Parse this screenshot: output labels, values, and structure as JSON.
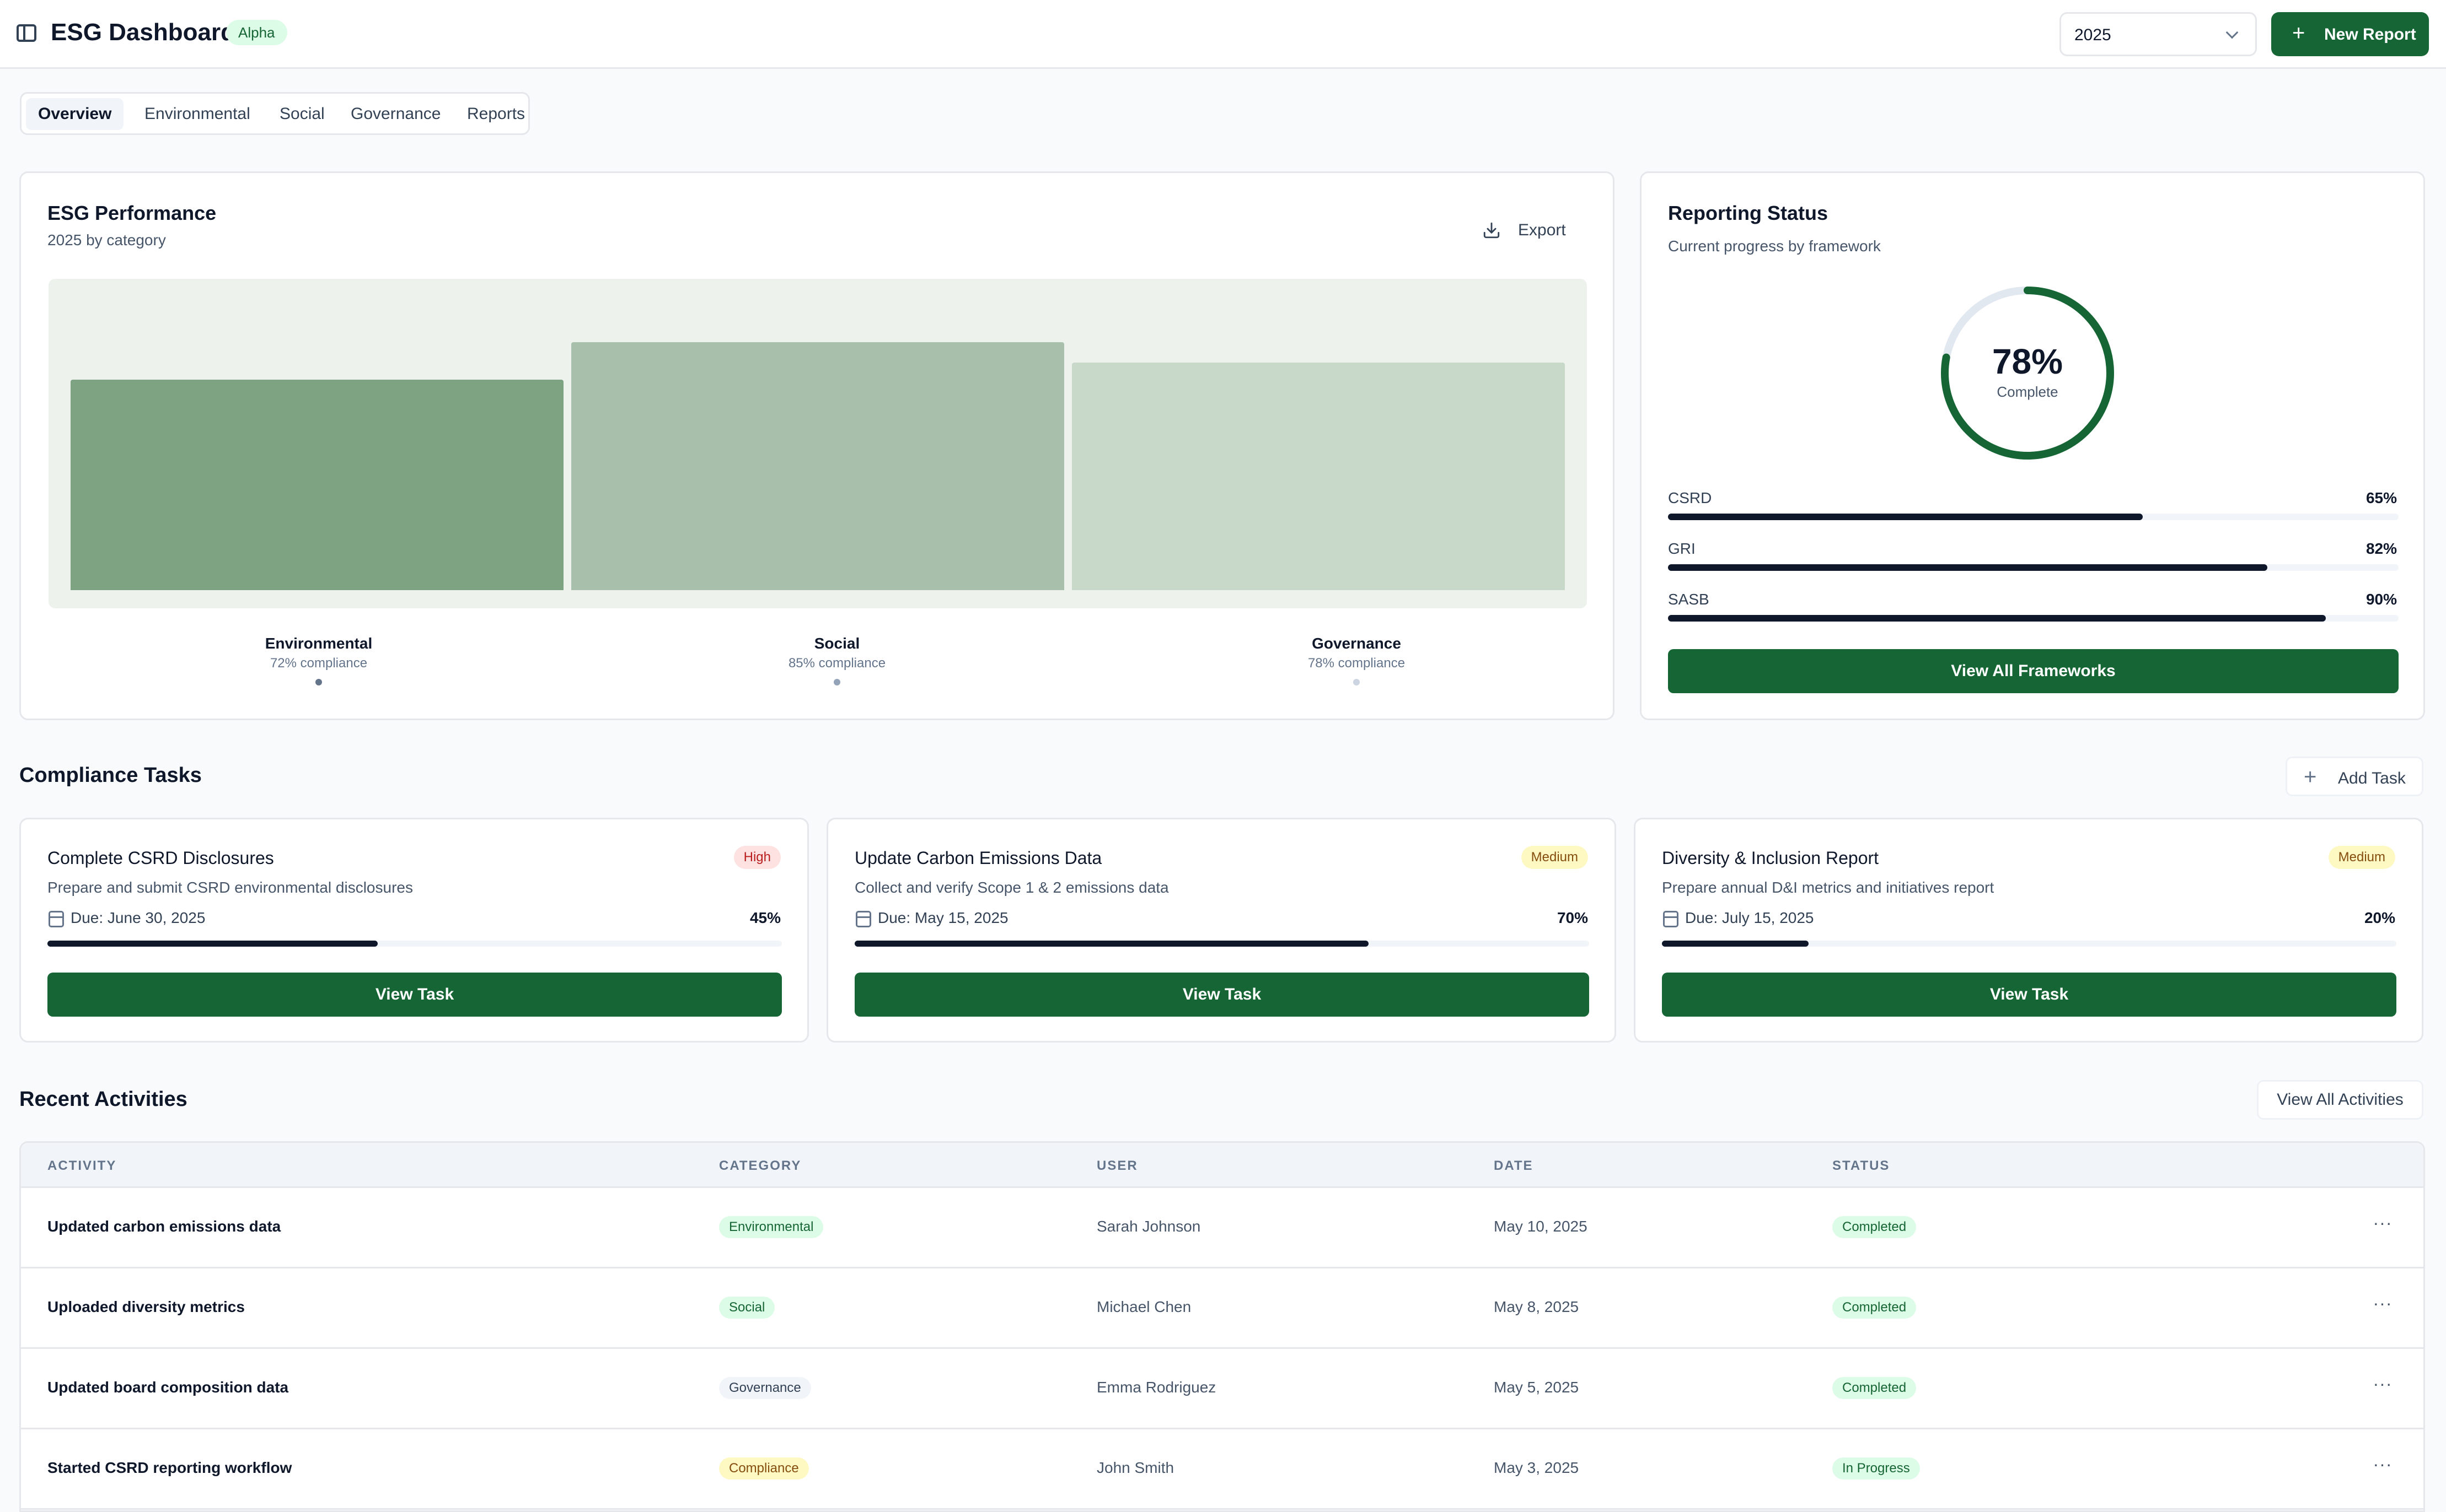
{
  "header": {
    "title": "ESG Dashboard",
    "badge": "Alpha",
    "year": "2025",
    "new_report_label": "New Report"
  },
  "tabs": [
    {
      "label": "Overview",
      "active": true
    },
    {
      "label": "Environmental"
    },
    {
      "label": "Social"
    },
    {
      "label": "Governance"
    },
    {
      "label": "Reports"
    }
  ],
  "performance": {
    "title": "ESG Performance",
    "subtitle": "2025 by category",
    "export_label": "Export",
    "categories": [
      {
        "name": "Environmental",
        "compliance_text": "72% compliance",
        "compliance": 72,
        "color": "#7ea383",
        "dot": "#64748b"
      },
      {
        "name": "Social",
        "compliance_text": "85% compliance",
        "compliance": 85,
        "color": "#a7bfab",
        "dot": "#94a3b8"
      },
      {
        "name": "Governance",
        "compliance_text": "78% compliance",
        "compliance": 78,
        "color": "#c8d9ca",
        "dot": "#cbd5e1"
      }
    ]
  },
  "reporting": {
    "title": "Reporting Status",
    "subtitle": "Current progress by framework",
    "overall_pct_label": "78%",
    "overall_pct": 78,
    "overall_caption": "Complete",
    "frameworks": [
      {
        "name": "CSRD",
        "pct_label": "65%",
        "pct": 65
      },
      {
        "name": "GRI",
        "pct_label": "82%",
        "pct": 82
      },
      {
        "name": "SASB",
        "pct_label": "90%",
        "pct": 90
      }
    ],
    "view_all_label": "View All Frameworks"
  },
  "tasks": {
    "title": "Compliance Tasks",
    "add_label": "Add Task",
    "items": [
      {
        "title": "Complete CSRD Disclosures",
        "priority": "High",
        "priority_level": "high",
        "desc": "Prepare and submit CSRD environmental disclosures",
        "due": "Due: June 30, 2025",
        "progress_label": "45%",
        "progress": 45,
        "button": "View Task"
      },
      {
        "title": "Update Carbon Emissions Data",
        "priority": "Medium",
        "priority_level": "medium",
        "desc": "Collect and verify Scope 1 & 2 emissions data",
        "due": "Due: May 15, 2025",
        "progress_label": "70%",
        "progress": 70,
        "button": "View Task"
      },
      {
        "title": "Diversity & Inclusion Report",
        "priority": "Medium",
        "priority_level": "medium",
        "desc": "Prepare annual D&I metrics and initiatives report",
        "due": "Due: July 15, 2025",
        "progress_label": "20%",
        "progress": 20,
        "button": "View Task"
      }
    ]
  },
  "activities": {
    "title": "Recent Activities",
    "view_all_label": "View All Activities",
    "columns": [
      "ACTIVITY",
      "CATEGORY",
      "USER",
      "DATE",
      "STATUS"
    ],
    "rows": [
      {
        "activity": "Updated carbon emissions data",
        "category": "Environmental",
        "cat_bg": "#dcfce7",
        "cat_fg": "#166534",
        "user": "Sarah Johnson",
        "date": "May 10, 2025",
        "status": "Completed",
        "st_bg": "#dcfce7",
        "st_fg": "#166534"
      },
      {
        "activity": "Uploaded diversity metrics",
        "category": "Social",
        "cat_bg": "#dcfce7",
        "cat_fg": "#166534",
        "user": "Michael Chen",
        "date": "May 8, 2025",
        "status": "Completed",
        "st_bg": "#dcfce7",
        "st_fg": "#166534"
      },
      {
        "activity": "Updated board composition data",
        "category": "Governance",
        "cat_bg": "#f1f5f9",
        "cat_fg": "#334155",
        "user": "Emma Rodriguez",
        "date": "May 5, 2025",
        "status": "Completed",
        "st_bg": "#dcfce7",
        "st_fg": "#166534"
      },
      {
        "activity": "Started CSRD reporting workflow",
        "category": "Compliance",
        "cat_bg": "#fef9c3",
        "cat_fg": "#854d0e",
        "user": "John Smith",
        "date": "May 3, 2025",
        "status": "In Progress",
        "st_bg": "#dcfce7",
        "st_fg": "#166534"
      }
    ],
    "more_label": "···"
  },
  "colors": {
    "accent": "#166534"
  }
}
